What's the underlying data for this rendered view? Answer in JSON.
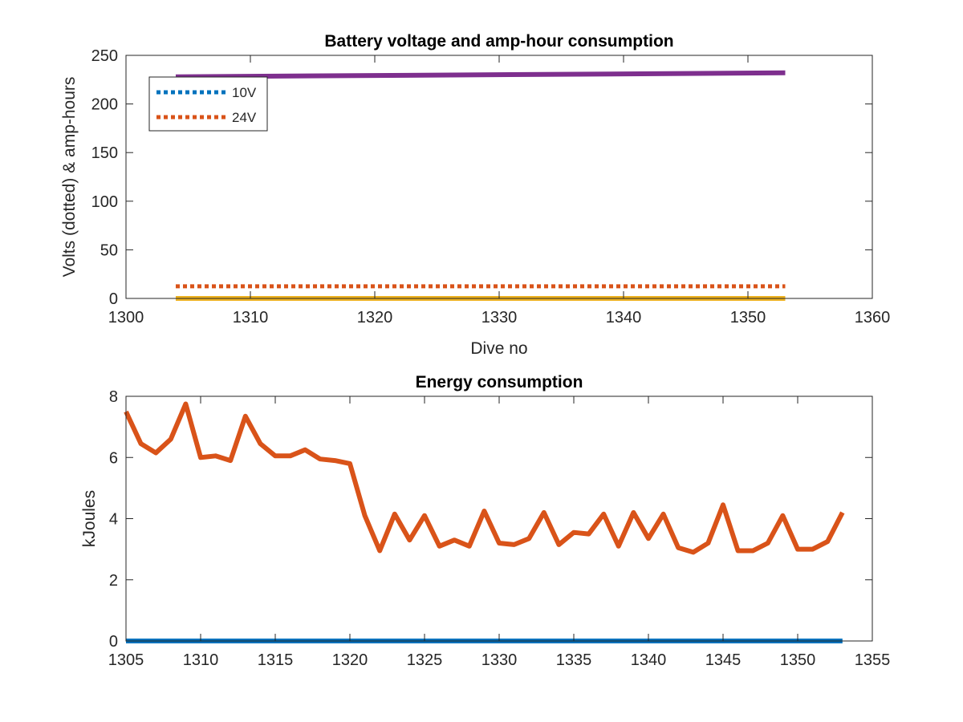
{
  "chart_data": [
    {
      "type": "line",
      "title": "Battery voltage and amp-hour consumption",
      "xlabel": "Dive no",
      "ylabel": "Volts (dotted) & amp-hours",
      "xlim": [
        1300,
        1360
      ],
      "ylim": [
        0,
        250
      ],
      "xticks": [
        1300,
        1310,
        1320,
        1330,
        1340,
        1350,
        1360
      ],
      "yticks": [
        0,
        50,
        100,
        150,
        200,
        250
      ],
      "grid": false,
      "legend_position": "top-left",
      "series": [
        {
          "name": "10V",
          "style": "dotted",
          "color": "#0072BD",
          "x": [
            1304,
            1353
          ],
          "y": [
            0.3,
            0.3
          ],
          "in_legend": true
        },
        {
          "name": "24V",
          "style": "dotted",
          "color": "#D95319",
          "x": [
            1304,
            1353
          ],
          "y": [
            12.5,
            12.5
          ],
          "in_legend": true
        },
        {
          "style": "solid",
          "color": "#EDB120",
          "x": [
            1304,
            1353
          ],
          "y": [
            0,
            0
          ],
          "in_legend": false
        },
        {
          "style": "solid",
          "color": "#7E2F8E",
          "x": [
            1304,
            1353
          ],
          "y": [
            228,
            232
          ],
          "in_legend": false
        }
      ]
    },
    {
      "type": "line",
      "title": "Energy consumption",
      "xlabel": "",
      "ylabel": "kJoules",
      "xlim": [
        1305,
        1355
      ],
      "ylim": [
        0,
        8
      ],
      "xticks": [
        1305,
        1310,
        1315,
        1320,
        1325,
        1330,
        1335,
        1340,
        1345,
        1350,
        1355
      ],
      "yticks": [
        0,
        2,
        4,
        6,
        8
      ],
      "grid": false,
      "series": [
        {
          "style": "solid",
          "color": "#D95319",
          "x": [
            1305,
            1306,
            1307,
            1308,
            1309,
            1310,
            1311,
            1312,
            1313,
            1314,
            1315,
            1316,
            1317,
            1318,
            1319,
            1320,
            1321,
            1322,
            1323,
            1324,
            1325,
            1326,
            1327,
            1328,
            1329,
            1330,
            1331,
            1332,
            1333,
            1334,
            1335,
            1336,
            1337,
            1338,
            1339,
            1340,
            1341,
            1342,
            1343,
            1344,
            1345,
            1346,
            1347,
            1348,
            1349,
            1350,
            1351,
            1352,
            1353
          ],
          "y": [
            7.5,
            6.45,
            6.15,
            6.6,
            7.75,
            6.0,
            6.05,
            5.9,
            7.35,
            6.45,
            6.05,
            6.05,
            6.25,
            5.95,
            5.9,
            5.8,
            4.1,
            2.95,
            4.15,
            3.3,
            4.1,
            3.1,
            3.3,
            3.1,
            4.25,
            3.2,
            3.15,
            3.35,
            4.2,
            3.15,
            3.55,
            3.5,
            4.15,
            3.1,
            4.2,
            3.35,
            4.15,
            3.05,
            2.9,
            3.2,
            4.45,
            2.95,
            2.95,
            3.2,
            4.1,
            3.0,
            3.0,
            3.25,
            4.2
          ]
        },
        {
          "style": "solid",
          "color": "#0072BD",
          "x": [
            1305,
            1353
          ],
          "y": [
            0,
            0
          ]
        }
      ]
    }
  ]
}
